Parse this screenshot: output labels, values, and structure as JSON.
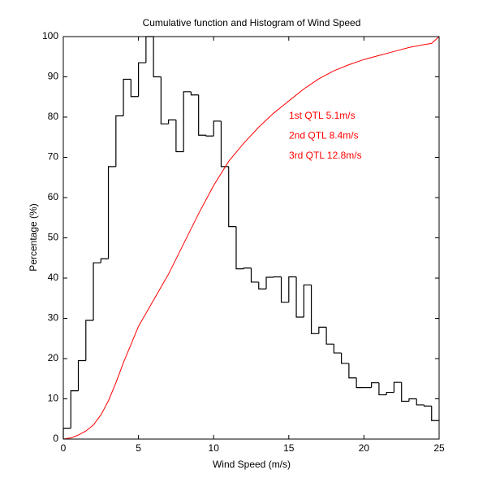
{
  "chart_data": {
    "type": "histogram",
    "title": "Cumulative function and Histogram of Wind Speed",
    "x_label": "Wind Speed (m/s)",
    "y_label": "Percentage (%)",
    "bins": [
      0,
      0.5,
      1,
      1.5,
      2,
      2.5,
      3,
      3.5,
      4,
      4.5,
      5,
      5.5,
      6,
      6.5,
      7,
      7.5,
      8,
      8.5,
      9,
      9.5,
      10,
      10.5,
      11,
      11.5,
      12,
      12.5,
      13,
      13.5,
      14,
      14.5,
      15,
      15.5,
      16,
      16.5,
      17,
      17.5,
      18,
      18.5,
      19,
      19.5,
      20,
      20.5,
      21,
      21.5,
      22,
      22.5,
      23,
      23.5,
      24,
      24.5,
      25
    ],
    "counts": [
      2.7,
      12,
      19.5,
      29.5,
      43.8,
      44.8,
      67.7,
      80.3,
      89.4,
      85.1,
      93.5,
      100,
      90,
      78.3,
      79.3,
      71.4,
      86.3,
      85.5,
      75.5,
      75.3,
      79,
      67.7,
      52.8,
      42.3,
      42.5,
      39,
      37.3,
      40.2,
      40.3,
      34,
      40.3,
      30.3,
      38.3,
      26.2,
      27.8,
      23.6,
      21.4,
      18.8,
      15.2,
      12.8,
      12.8,
      14,
      11,
      11.6,
      14.1,
      9.4,
      10,
      8.5,
      8.2,
      4.6
    ],
    "color": "#000000",
    "cdf": {
      "x": [
        0,
        0.5,
        1,
        1.5,
        2,
        2.5,
        3,
        3.5,
        4,
        4.5,
        5,
        6,
        7,
        8,
        9,
        10,
        11,
        12,
        13,
        14,
        15,
        16,
        17,
        18,
        19,
        20,
        21,
        22,
        23,
        24,
        24.5,
        25
      ],
      "values": [
        0,
        0.3,
        1,
        2,
        3.5,
        6,
        9.5,
        14,
        19,
        23.5,
        28,
        34.5,
        41,
        48.5,
        56,
        63,
        69,
        73.5,
        77.5,
        81,
        84,
        87,
        89.5,
        91.5,
        93,
        94.3,
        95.3,
        96.3,
        97.3,
        98,
        98.3,
        100
      ],
      "color": "#ff0000"
    },
    "annotations": [
      "1st QTL 5.1m/s",
      "2nd QTL 8.4m/s",
      "3rd QTL 12.8m/s"
    ],
    "xlim": [
      0,
      25
    ],
    "ylim": [
      0,
      100
    ],
    "xticks": [
      0,
      5,
      10,
      15,
      20,
      25
    ],
    "yticks": [
      0,
      10,
      20,
      30,
      40,
      50,
      60,
      70,
      80,
      90,
      100
    ]
  }
}
